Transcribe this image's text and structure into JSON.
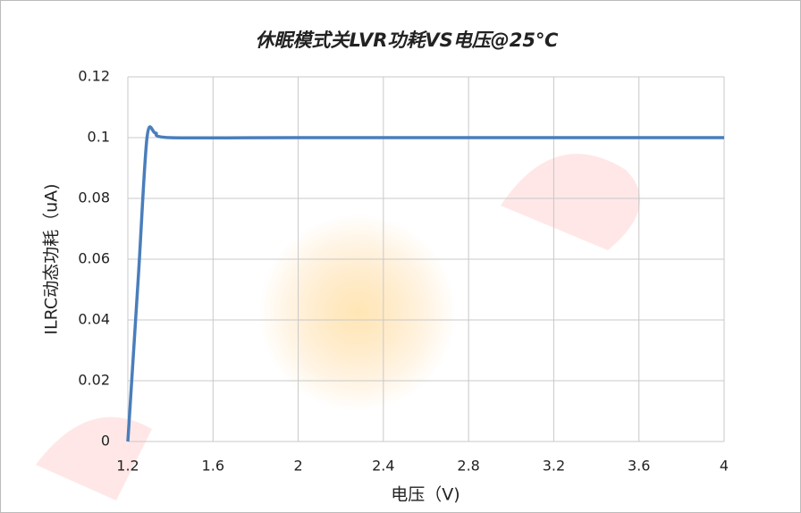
{
  "chart_data": {
    "type": "line",
    "title": "休眠模式关LVR功耗VS电压@25℃",
    "x_label": "电压（V)",
    "y_label": "ILRC动态功耗（uA)",
    "series": [
      {
        "name": "ILRC",
        "color": "#4a7ebb",
        "x": [
          1.2,
          1.25,
          1.29,
          1.33,
          1.4,
          2,
          4
        ],
        "values": [
          0,
          0.055,
          0.1,
          0.1015,
          0.1,
          0.1,
          0.1
        ]
      }
    ],
    "xlim": [
      1.2,
      4
    ],
    "xticks": [
      1.2,
      1.6,
      2,
      2.4,
      2.8,
      3.2,
      3.6,
      4
    ],
    "ylim": [
      0,
      0.12
    ],
    "yticks": [
      0,
      0.02,
      0.04,
      0.06,
      0.08,
      0.1,
      0.12
    ],
    "grid": true
  }
}
